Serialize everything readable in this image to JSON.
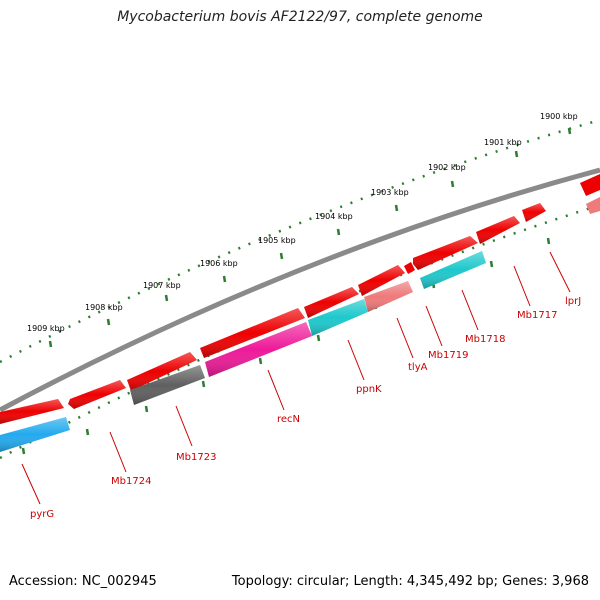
{
  "header": {
    "title": "Mycobacterium bovis AF2122/97, complete genome"
  },
  "footer": {
    "accession": "Accession: NC_002945",
    "summary": "Topology: circular; Length: 4,345,492 bp; Genes: 3,968"
  },
  "colors": {
    "backbone": "#8a8a8a",
    "tick": "#2e7d32",
    "gene_red": "#ee0000",
    "gene_salmon": "#ee7a7a",
    "gene_cyan": "#1ec8cc",
    "gene_blue": "#22aaee",
    "gene_magenta": "#ee1a99",
    "gene_gray": "#606060",
    "label_red": "#cc0000"
  },
  "kbp_ticks": [
    "1900 kbp",
    "1901 kbp",
    "1902 kbp",
    "1903 kbp",
    "1904 kbp",
    "1905 kbp",
    "1906 kbp",
    "1907 kbp",
    "1908 kbp",
    "1909 kbp"
  ],
  "gene_labels": [
    "lprJ",
    "Mb1717",
    "Mb1718",
    "Mb1719",
    "tlyA",
    "ppnK",
    "recN",
    "Mb1723",
    "Mb1724",
    "pyrG"
  ]
}
